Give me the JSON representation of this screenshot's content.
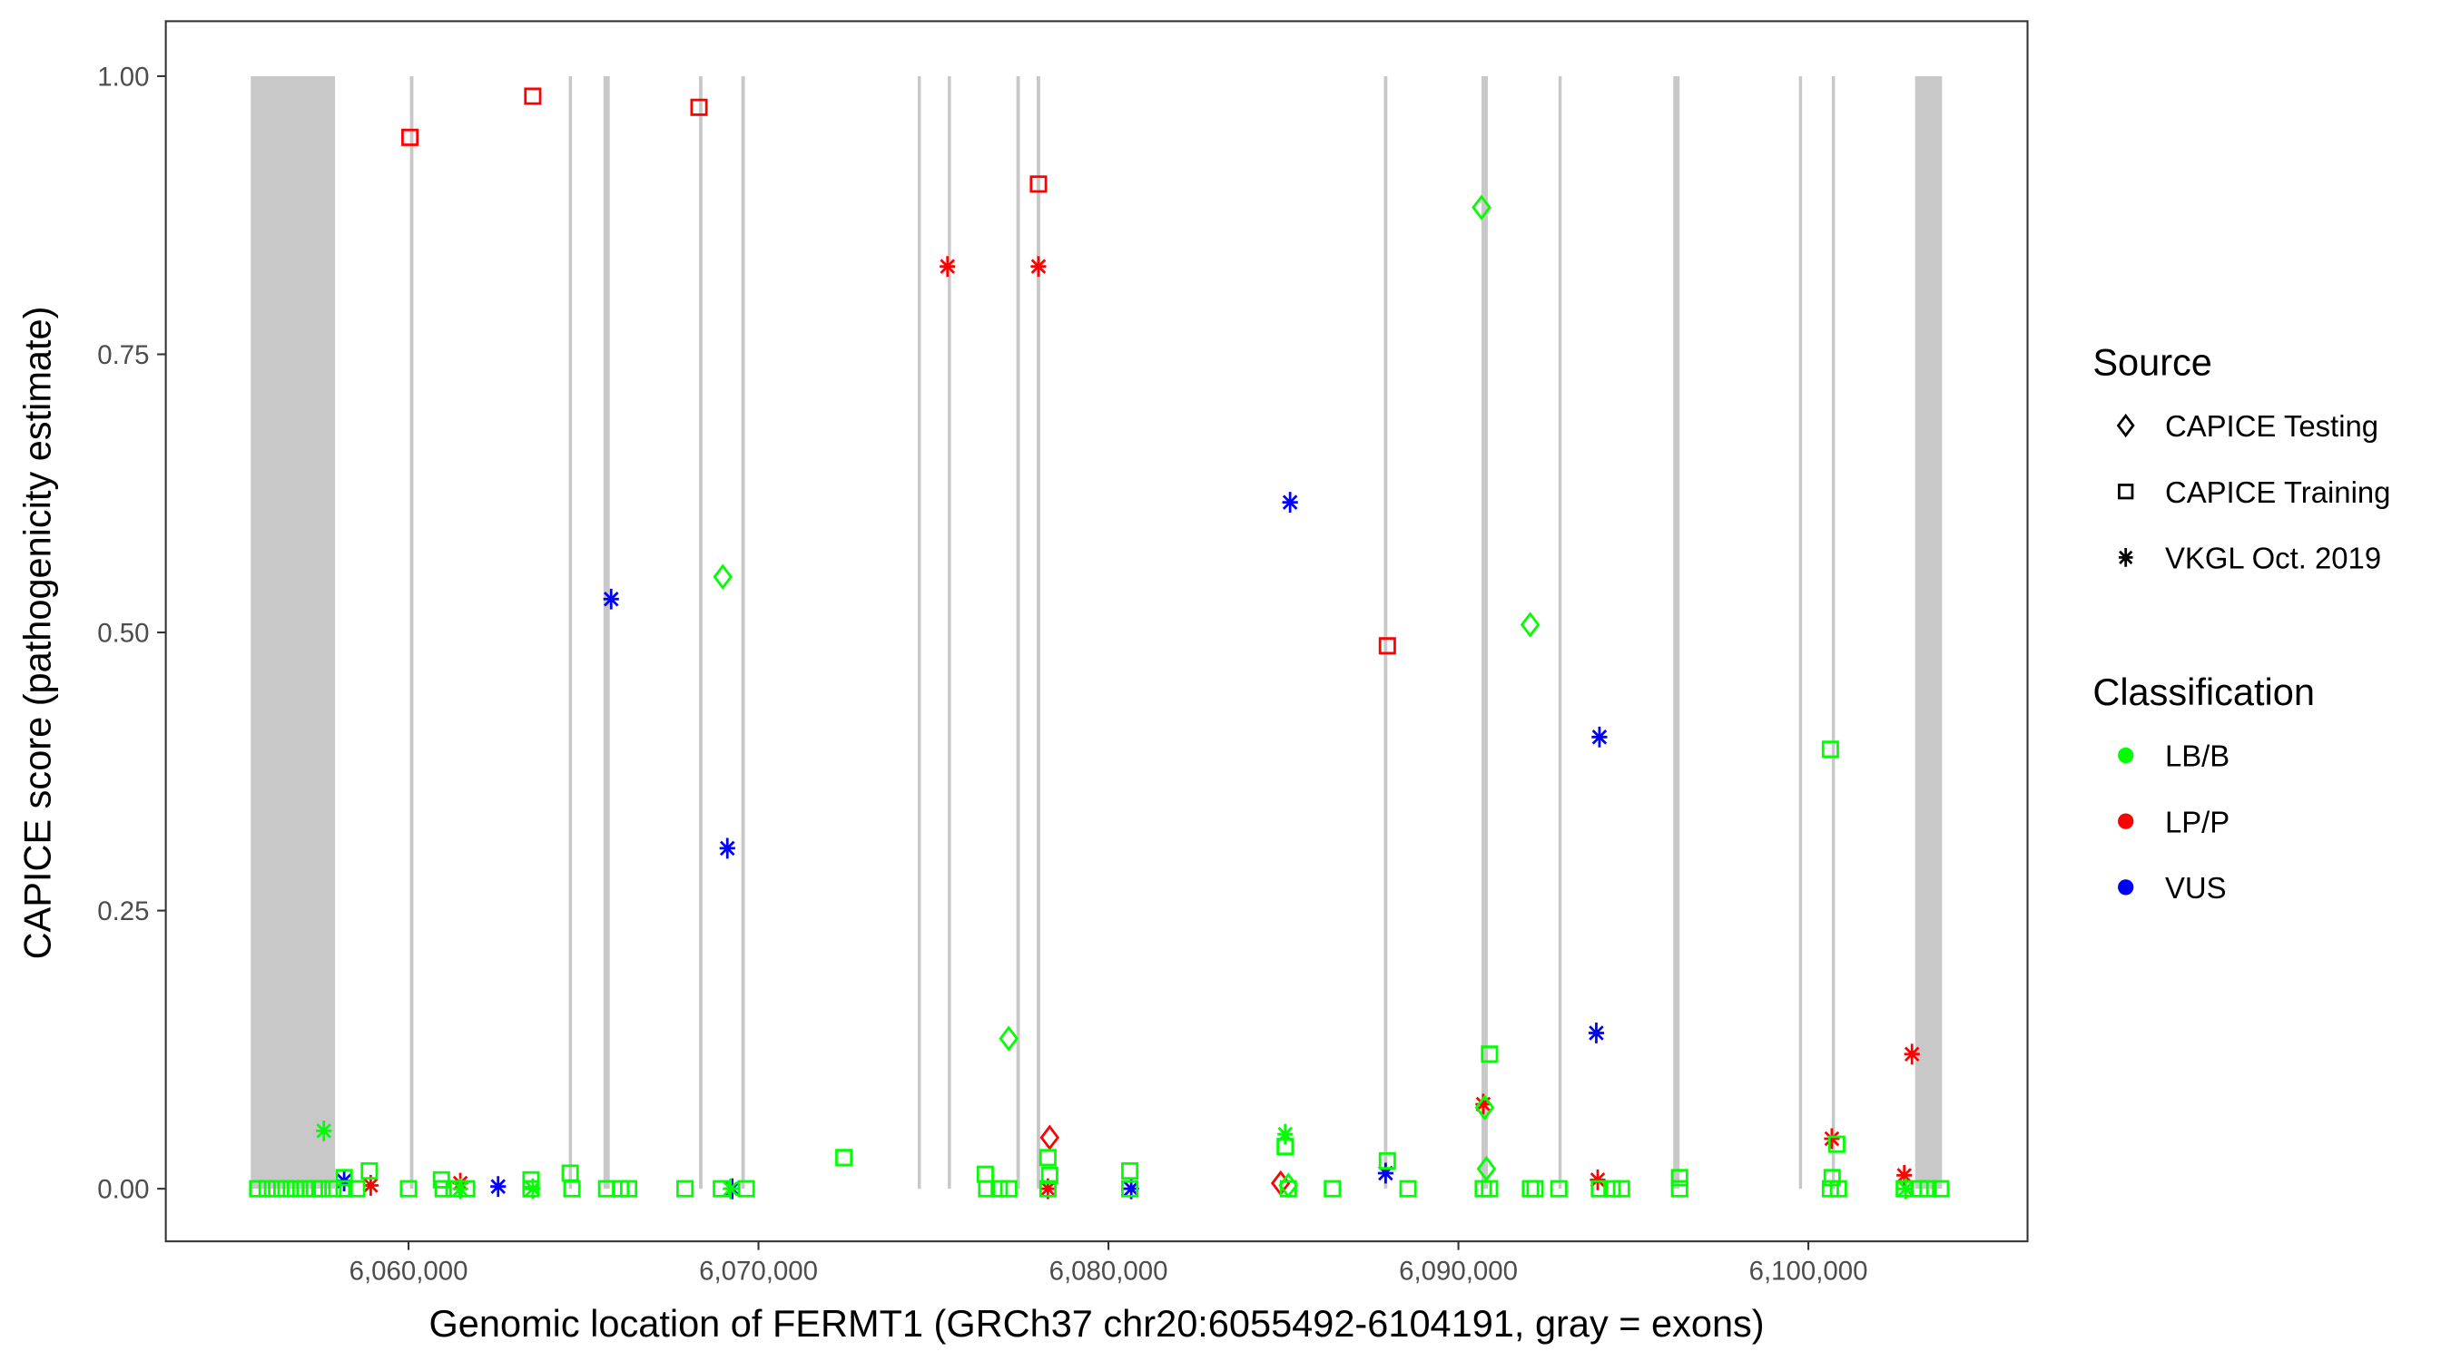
{
  "chart_data": {
    "type": "scatter",
    "title": "",
    "xlabel": "Genomic location of FERMT1 (GRCh37 chr20:6055492-6104191, gray = exons)",
    "ylabel": "CAPICE score (pathogenicity estimate)",
    "xlim": [
      6053500,
      6106700
    ],
    "ylim": [
      -0.047,
      1.05
    ],
    "x_ticks": [
      6060000,
      6070000,
      6080000,
      6090000,
      6100000
    ],
    "x_tick_labels": [
      "6,060,000",
      "6,070,000",
      "6,080,000",
      "6,090,000",
      "6,100,000"
    ],
    "y_ticks": [
      0,
      0.25,
      0.5,
      0.75,
      1.0
    ],
    "y_tick_labels": [
      "0.00",
      "0.25",
      "0.50",
      "0.75",
      "1.00"
    ],
    "grid": false,
    "exons": [
      [
        6055492,
        6057900
      ],
      [
        6060040,
        6060140
      ],
      [
        6064580,
        6064670
      ],
      [
        6065570,
        6065750
      ],
      [
        6068300,
        6068400
      ],
      [
        6069510,
        6069610
      ],
      [
        6074550,
        6074630
      ],
      [
        6075410,
        6075470
      ],
      [
        6077370,
        6077470
      ],
      [
        6077950,
        6078050
      ],
      [
        6087870,
        6087970
      ],
      [
        6090660,
        6090840
      ],
      [
        6092860,
        6092950
      ],
      [
        6096140,
        6096320
      ],
      [
        6099730,
        6099820
      ],
      [
        6100670,
        6100760
      ],
      [
        6103050,
        6103820
      ]
    ],
    "exon_ymax": 1.0,
    "colors": {
      "LB/B": "#00FF00",
      "LP/P": "#FF0000",
      "VUS": "#0000FF",
      "exon": "#C8C8C8"
    },
    "legend": {
      "placement": "right",
      "source_title": "Source",
      "source_items": [
        {
          "label": "CAPICE Testing",
          "shape": "diamond"
        },
        {
          "label": "CAPICE Training",
          "shape": "square"
        },
        {
          "label": "VKGL Oct. 2019",
          "shape": "asterisk"
        }
      ],
      "class_title": "Classification",
      "class_items": [
        {
          "label": "LB/B",
          "color": "#00FF00"
        },
        {
          "label": "LP/P",
          "color": "#FF0000"
        },
        {
          "label": "VUS",
          "color": "#0000FF"
        }
      ]
    },
    "series": [
      {
        "source": "CAPICE Training",
        "class": "LP/P",
        "points": [
          [
            6060040,
            0.945
          ],
          [
            6063550,
            0.982
          ],
          [
            6068300,
            0.972
          ],
          [
            6078000,
            0.903
          ],
          [
            6087970,
            0.488
          ]
        ]
      },
      {
        "source": "VKGL Oct. 2019",
        "class": "LP/P",
        "points": [
          [
            6075400,
            0.829
          ],
          [
            6078000,
            0.829
          ],
          [
            6090710,
            0.076
          ],
          [
            6100670,
            0.045
          ],
          [
            6102960,
            0.121
          ],
          [
            6102740,
            0.012
          ],
          [
            6093980,
            0.008
          ],
          [
            6078270,
            0.0
          ],
          [
            6058920,
            0.003
          ],
          [
            6061480,
            0.005
          ]
        ]
      },
      {
        "source": "CAPICE Testing",
        "class": "LP/P",
        "points": [
          [
            6078320,
            0.046
          ],
          [
            6084920,
            0.005
          ]
        ]
      },
      {
        "source": "VKGL Oct. 2019",
        "class": "VUS",
        "points": [
          [
            6065790,
            0.53
          ],
          [
            6069110,
            0.306
          ],
          [
            6085190,
            0.617
          ],
          [
            6094030,
            0.406
          ],
          [
            6093940,
            0.14
          ],
          [
            6087920,
            0.014
          ],
          [
            6058160,
            0.007
          ],
          [
            6062560,
            0.002
          ],
          [
            6080650,
            0.0
          ],
          [
            6069250,
            0.0
          ]
        ]
      },
      {
        "source": "CAPICE Testing",
        "class": "LB/B",
        "points": [
          [
            6090660,
            0.882
          ],
          [
            6068980,
            0.55
          ],
          [
            6092050,
            0.507
          ],
          [
            6077150,
            0.135
          ],
          [
            6090750,
            0.073
          ],
          [
            6090800,
            0.018
          ],
          [
            6085140,
            0.003
          ]
        ]
      },
      {
        "source": "VKGL Oct. 2019",
        "class": "LB/B",
        "points": [
          [
            6057580,
            0.052
          ],
          [
            6085050,
            0.049
          ],
          [
            6102780,
            0.0
          ],
          [
            6061480,
            0.0
          ],
          [
            6063550,
            0.0
          ],
          [
            6069200,
            0.0
          ]
        ]
      },
      {
        "source": "CAPICE Training",
        "class": "LB/B",
        "points": [
          [
            6100630,
            0.395
          ],
          [
            6090890,
            0.121
          ],
          [
            6072440,
            0.028
          ],
          [
            6078270,
            0.028
          ],
          [
            6087970,
            0.025
          ],
          [
            6085050,
            0.038
          ],
          [
            6100810,
            0.04
          ],
          [
            6058880,
            0.016
          ],
          [
            6058160,
            0.01
          ],
          [
            6064620,
            0.014
          ],
          [
            6080610,
            0.016
          ],
          [
            6063500,
            0.008
          ],
          [
            6060940,
            0.008
          ],
          [
            6076480,
            0.013
          ],
          [
            6096320,
            0.01
          ],
          [
            6100680,
            0.01
          ],
          [
            6078320,
            0.012
          ],
          [
            6055690,
            0
          ],
          [
            6055960,
            0
          ],
          [
            6056230,
            0
          ],
          [
            6056500,
            0
          ],
          [
            6056770,
            0
          ],
          [
            6057040,
            0
          ],
          [
            6057310,
            0
          ],
          [
            6057530,
            0
          ],
          [
            6057840,
            0
          ],
          [
            6058160,
            0
          ],
          [
            6058520,
            0
          ],
          [
            6060000,
            0
          ],
          [
            6060990,
            0
          ],
          [
            6061300,
            0
          ],
          [
            6061660,
            0
          ],
          [
            6063500,
            0
          ],
          [
            6064670,
            0
          ],
          [
            6065660,
            0
          ],
          [
            6066060,
            0
          ],
          [
            6066290,
            0
          ],
          [
            6067900,
            0
          ],
          [
            6068940,
            0
          ],
          [
            6069650,
            0
          ],
          [
            6076520,
            0
          ],
          [
            6076880,
            0
          ],
          [
            6077150,
            0
          ],
          [
            6078270,
            0
          ],
          [
            6080610,
            0
          ],
          [
            6085140,
            0
          ],
          [
            6086400,
            0
          ],
          [
            6088560,
            0
          ],
          [
            6090710,
            0
          ],
          [
            6090890,
            0
          ],
          [
            6092060,
            0
          ],
          [
            6092190,
            0
          ],
          [
            6092870,
            0
          ],
          [
            6094030,
            0
          ],
          [
            6094390,
            0
          ],
          [
            6094660,
            0
          ],
          [
            6096320,
            0
          ],
          [
            6100630,
            0
          ],
          [
            6100860,
            0
          ],
          [
            6102740,
            0
          ],
          [
            6103190,
            0
          ],
          [
            6103420,
            0
          ],
          [
            6103780,
            0
          ]
        ]
      }
    ]
  }
}
